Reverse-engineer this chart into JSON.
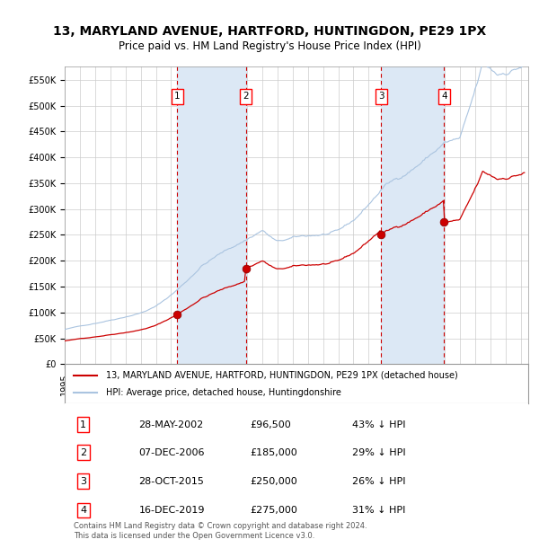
{
  "title": "13, MARYLAND AVENUE, HARTFORD, HUNTINGDON, PE29 1PX",
  "subtitle": "Price paid vs. HM Land Registry's House Price Index (HPI)",
  "property_label": "13, MARYLAND AVENUE, HARTFORD, HUNTINGDON, PE29 1PX (detached house)",
  "hpi_label": "HPI: Average price, detached house, Huntingdonshire",
  "transactions": [
    {
      "num": 1,
      "date": "28-MAY-2002",
      "price": 96500,
      "pct": "43% ↓ HPI",
      "date_float": 2002.41
    },
    {
      "num": 2,
      "date": "07-DEC-2006",
      "price": 185000,
      "pct": "29% ↓ HPI",
      "date_float": 2006.93
    },
    {
      "num": 3,
      "date": "28-OCT-2015",
      "price": 250000,
      "pct": "26% ↓ HPI",
      "date_float": 2015.82
    },
    {
      "num": 4,
      "date": "16-DEC-2019",
      "price": 275000,
      "pct": "31% ↓ HPI",
      "date_float": 2019.96
    }
  ],
  "xmin": 1995.0,
  "xmax": 2025.5,
  "ymin": 0,
  "ymax": 575000,
  "yticks": [
    0,
    50000,
    100000,
    150000,
    200000,
    250000,
    300000,
    350000,
    400000,
    450000,
    500000,
    550000
  ],
  "background_color": "#ffffff",
  "grid_color": "#cccccc",
  "hpi_line_color": "#aac4e0",
  "property_line_color": "#cc0000",
  "dashed_line_color": "#cc0000",
  "shading_color": "#dce8f5",
  "footer_text": "Contains HM Land Registry data © Crown copyright and database right 2024.\nThis data is licensed under the Open Government Licence v3.0.",
  "legend_box_color": "#ffffff",
  "legend_border_color": "#999999"
}
